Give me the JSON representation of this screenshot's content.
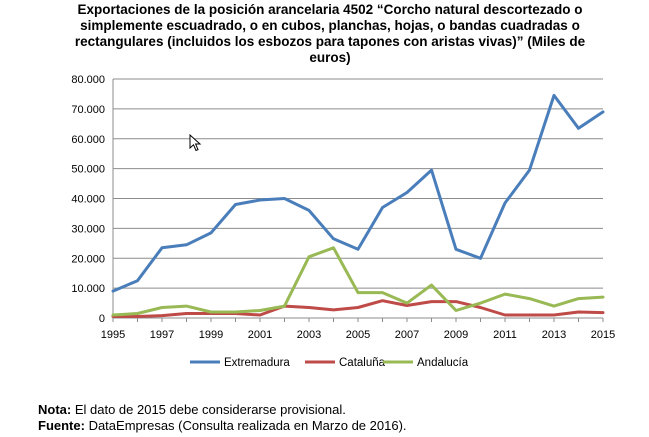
{
  "chart_data": {
    "type": "line",
    "title_lines": [
      "Exportaciones de la posición arancelaria 4502 “Corcho natural descortezado o",
      "simplemente escuadrado, o en cubos, planchas, hojas, o bandas cuadradas o",
      "rectangulares (incluidos los esbozos para tapones con aristas vivas)” (Miles de",
      "euros)"
    ],
    "x": [
      1995,
      1996,
      1997,
      1998,
      1999,
      2000,
      2001,
      2002,
      2003,
      2004,
      2005,
      2006,
      2007,
      2008,
      2009,
      2010,
      2011,
      2012,
      2013,
      2014,
      2015
    ],
    "x_tick_labels": [
      "1995",
      "1997",
      "1999",
      "2001",
      "2003",
      "2005",
      "2007",
      "2009",
      "2011",
      "2013",
      "2015"
    ],
    "y_tick_labels": [
      "0",
      "10.000",
      "20.000",
      "30.000",
      "40.000",
      "50.000",
      "60.000",
      "70.000",
      "80.000"
    ],
    "ylim": [
      0,
      80000
    ],
    "xlim": [
      1995,
      2015
    ],
    "grid": "horizontal",
    "legend_position": "bottom",
    "series": [
      {
        "name": "Extremadura",
        "color": "#4a7ebb",
        "values": [
          9000,
          12500,
          23500,
          24500,
          28500,
          38000,
          39500,
          40000,
          36000,
          26500,
          23000,
          37000,
          42000,
          49500,
          23000,
          20000,
          38500,
          49500,
          74500,
          63500,
          69000
        ]
      },
      {
        "name": "Cataluña",
        "color": "#be4b48",
        "values": [
          500,
          500,
          800,
          1500,
          1500,
          1500,
          1000,
          4000,
          3500,
          2700,
          3500,
          5800,
          4200,
          5500,
          5500,
          3500,
          1000,
          1000,
          1000,
          2000,
          1800
        ]
      },
      {
        "name": "Andalucía",
        "color": "#98b954",
        "values": [
          1000,
          1500,
          3500,
          4000,
          2000,
          2000,
          2500,
          4000,
          20500,
          23500,
          8500,
          8500,
          5000,
          11000,
          2500,
          5000,
          8000,
          6500,
          4000,
          6500,
          7000
        ]
      }
    ]
  },
  "notes": {
    "nota_label": "Nota:",
    "nota_text": " El dato de 2015 debe considerarse provisional.",
    "fuente_label": "Fuente:",
    "fuente_text": " DataEmpresas (Consulta realizada en Marzo de 2016)."
  }
}
